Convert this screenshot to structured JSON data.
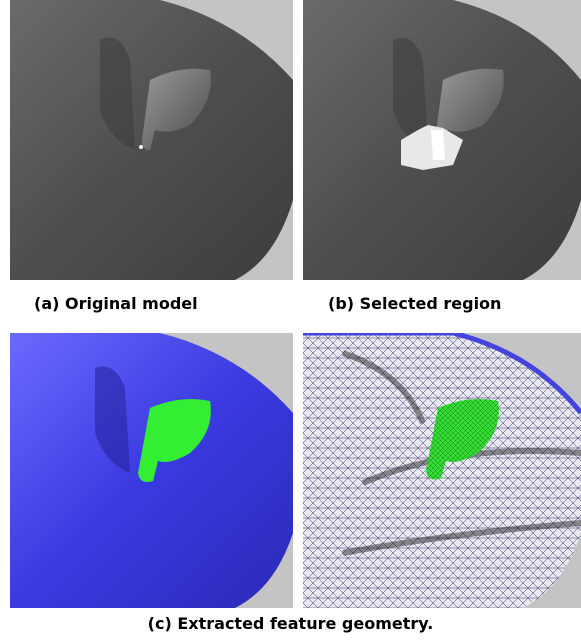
{
  "captions": [
    "(a) Original model",
    "(b) Selected region",
    "(c) Extracted feature geometry."
  ]
}
